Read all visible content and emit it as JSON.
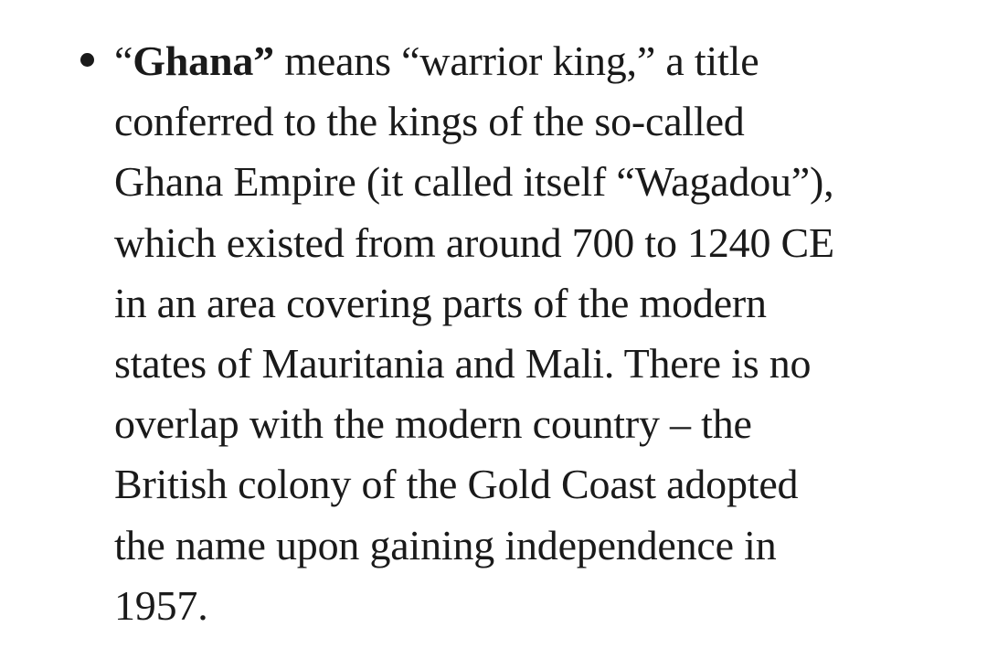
{
  "list_item": {
    "open_quote": "“",
    "bold_term": "Ghana”",
    "first_line_rest": " means “warrior king,” a title",
    "lines": [
      "conferred to the kings of the so-called",
      "Ghana Empire (it called itself “Wagadou”),",
      "which existed from around 700 to 1240 CE",
      "in an area covering parts of the modern",
      "states of Mauritania and Mali. There is no",
      "overlap with the modern country – the",
      "British colony of the Gold Coast adopted",
      "the name upon gaining independence in",
      "1957."
    ]
  }
}
